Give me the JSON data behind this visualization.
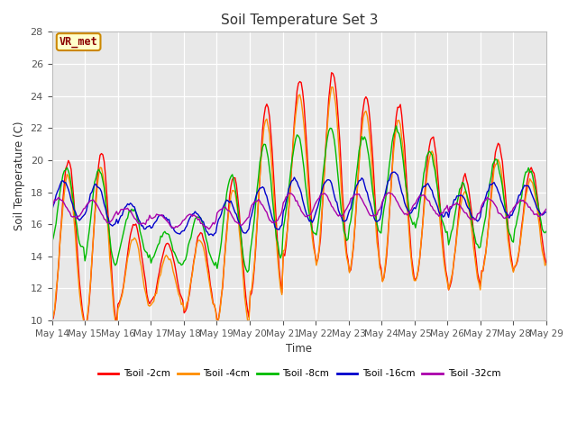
{
  "title": "Soil Temperature Set 3",
  "xlabel": "Time",
  "ylabel": "Soil Temperature (C)",
  "ylim": [
    10,
    28
  ],
  "yticks": [
    10,
    12,
    14,
    16,
    18,
    20,
    22,
    24,
    26,
    28
  ],
  "xtick_labels": [
    "May 14",
    "May 15",
    "May 16",
    "May 17",
    "May 18",
    "May 19",
    "May 20",
    "May 21",
    "May 22",
    "May 23",
    "May 24",
    "May 25",
    "May 26",
    "May 27",
    "May 28",
    "May 29"
  ],
  "colors": {
    "Tsoil -2cm": "#ff0000",
    "Tsoil -4cm": "#ff8c00",
    "Tsoil -8cm": "#00bb00",
    "Tsoil -16cm": "#0000cc",
    "Tsoil -32cm": "#aa00aa"
  },
  "annotation_text": "VR_met",
  "annotation_color": "#8b0000",
  "annotation_box_edge": "#cc8800",
  "annotation_box_face": "#ffffcc",
  "fig_bg": "#ffffff",
  "plot_bg": "#e8e8e8",
  "grid_color": "#ffffff",
  "n_points": 360,
  "n_days": 15
}
